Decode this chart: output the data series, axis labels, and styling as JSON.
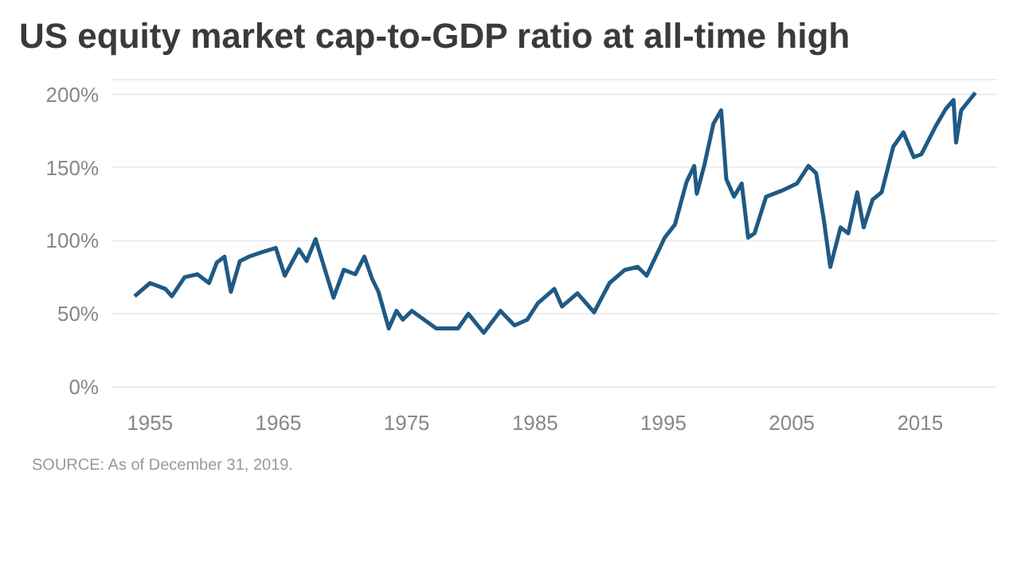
{
  "chart_data": {
    "type": "line",
    "title": "US equity market cap-to-GDP ratio at all-time high",
    "x": [
      1953.8,
      1955,
      1956.2,
      1956.7,
      1957.7,
      1958.7,
      1959.6,
      1960.2,
      1960.8,
      1961.3,
      1962,
      1962.7,
      1963.7,
      1964.8,
      1965.5,
      1966.6,
      1967.2,
      1967.9,
      1969.3,
      1970.1,
      1971,
      1971.7,
      1972.3,
      1972.8,
      1973.6,
      1974.2,
      1974.7,
      1975.4,
      1977.3,
      1979,
      1979.8,
      1981,
      1982.3,
      1983.4,
      1984.4,
      1985.2,
      1986.5,
      1987.1,
      1988.3,
      1989.6,
      1990.8,
      1992,
      1993,
      1993.7,
      1995.1,
      1995.9,
      1996.8,
      1997.4,
      1997.6,
      1998.2,
      1998.9,
      1999.5,
      1999.9,
      2000.5,
      2001.1,
      2001.6,
      2002.1,
      2003,
      2004.2,
      2005.4,
      2006.3,
      2006.9,
      2007.5,
      2008,
      2008.8,
      2009.4,
      2010.1,
      2010.6,
      2011.3,
      2012,
      2012.9,
      2013.7,
      2014.5,
      2015.1,
      2016.2,
      2017,
      2017.6,
      2017.8,
      2018.2,
      2019.3
    ],
    "series": [
      {
        "color": "#1f5a85",
        "values": [
          62,
          71,
          67,
          62,
          75,
          77,
          71,
          85,
          89,
          65,
          86,
          89,
          92,
          95,
          76,
          94,
          86,
          101,
          61,
          80,
          77,
          89,
          74,
          65,
          40,
          52,
          46,
          52,
          40,
          40,
          50,
          37,
          52,
          42,
          46,
          57,
          67,
          55,
          64,
          51,
          71,
          80,
          82,
          76,
          102,
          111,
          140,
          151,
          132,
          152,
          180,
          189,
          142,
          130,
          139,
          102,
          105,
          130,
          134,
          139,
          151,
          146,
          114,
          82,
          109,
          105,
          133,
          109,
          128,
          133,
          164,
          174,
          157,
          159,
          178,
          190,
          196,
          167,
          189,
          201
        ]
      }
    ],
    "xlim": [
      1952,
      2021
    ],
    "xticks": [
      1955,
      1965,
      1975,
      1985,
      1995,
      2005,
      2015
    ],
    "ylim": [
      0,
      210
    ],
    "yticks": [
      {
        "value": 0,
        "label": "0%"
      },
      {
        "value": 50,
        "label": "50%"
      },
      {
        "value": 100,
        "label": "100%"
      },
      {
        "value": 150,
        "label": "150%"
      },
      {
        "value": 200,
        "label": "200%"
      }
    ],
    "grid": "y",
    "legend": false,
    "marker": "none",
    "line_style": "solid",
    "annotations": [
      "SOURCE: As of December 31, 2019."
    ]
  }
}
